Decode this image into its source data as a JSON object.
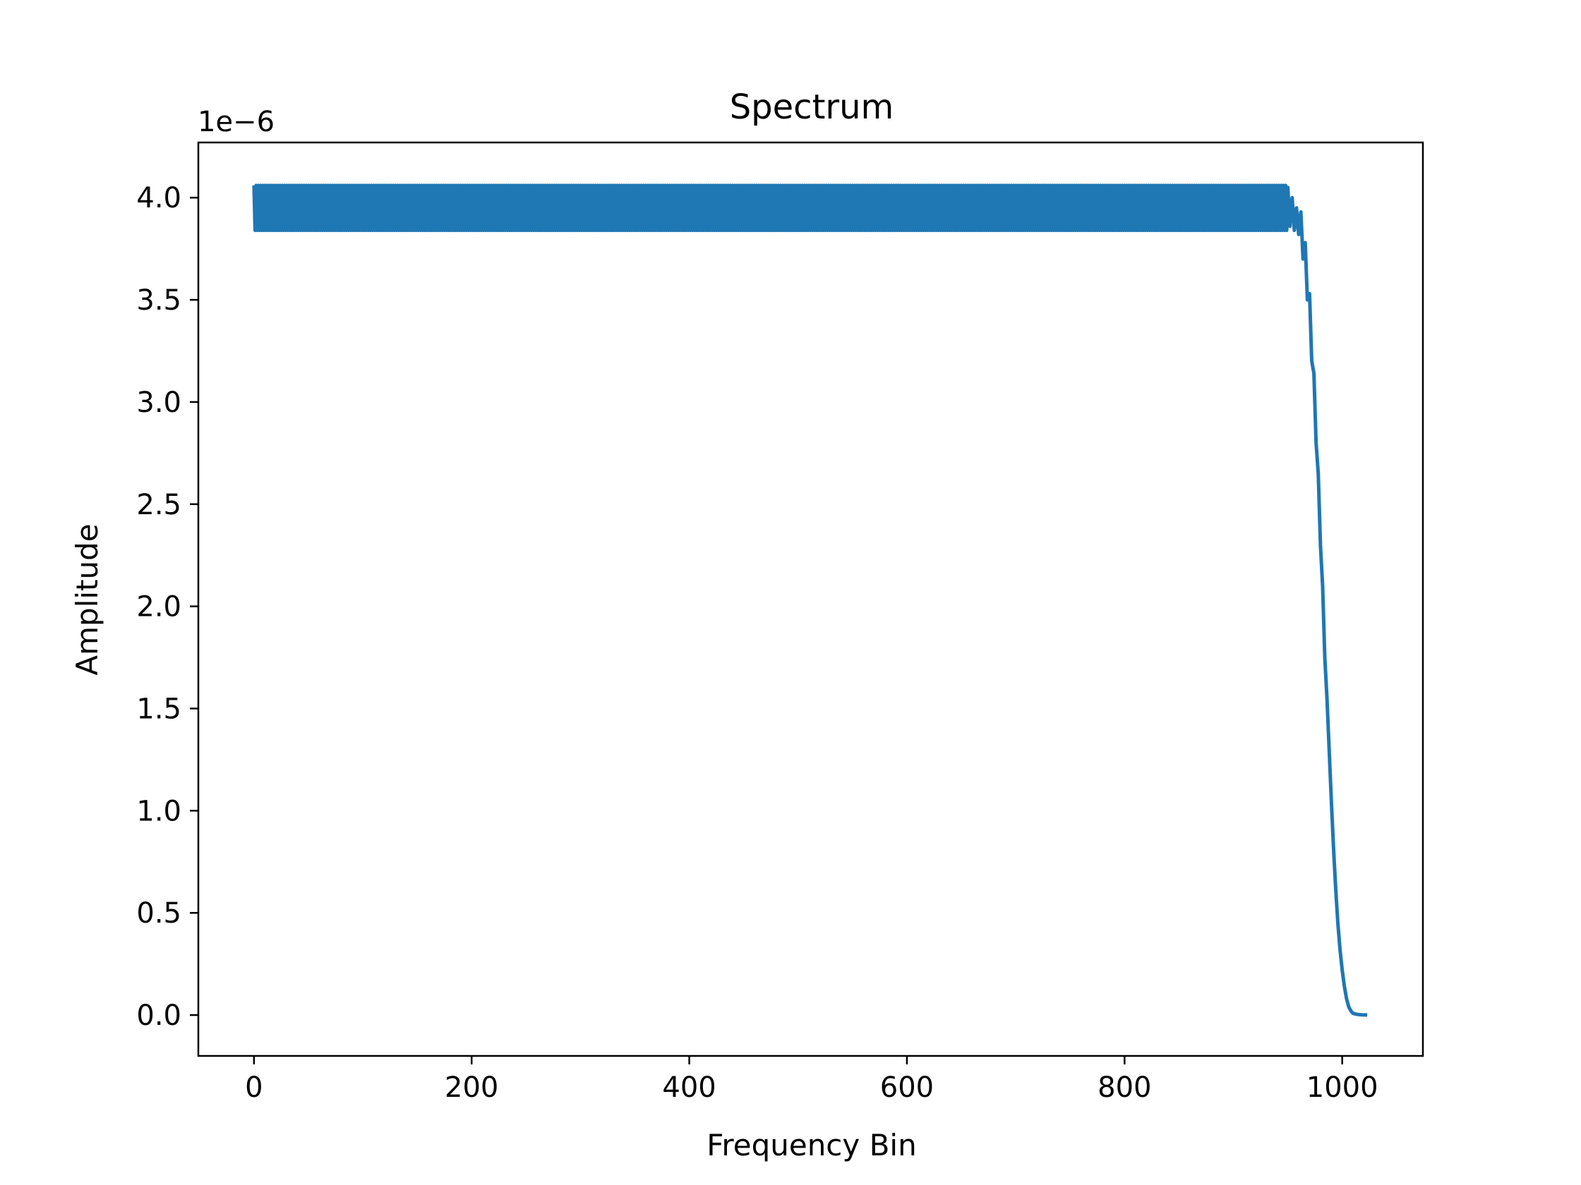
{
  "chart_data": {
    "type": "line",
    "title": "Spectrum",
    "xlabel": "Frequency Bin",
    "ylabel": "Amplitude",
    "y_offset_label": "1e−6",
    "y_scale": 1e-06,
    "xlim": [
      -51.15,
      1074.15
    ],
    "ylim": [
      -0.2,
      4.27
    ],
    "x_ticks": [
      0,
      200,
      400,
      600,
      800,
      1000
    ],
    "x_tick_labels": [
      "0",
      "200",
      "400",
      "600",
      "800",
      "1000"
    ],
    "y_ticks": [
      0.0,
      0.5,
      1.0,
      1.5,
      2.0,
      2.5,
      3.0,
      3.5,
      4.0
    ],
    "y_tick_labels": [
      "0.0",
      "0.5",
      "1.0",
      "1.5",
      "2.0",
      "2.5",
      "3.0",
      "3.5",
      "4.0"
    ],
    "grid": false,
    "color": "#1f77b4",
    "series": [
      {
        "description": "Dense alternating ripple band from bin 0 to ~950, then roll-off to zero by ~1023",
        "ripple_band": {
          "x_start": 0,
          "x_end": 950,
          "y_high": 4.06,
          "y_low": 3.84,
          "period_bins": 2
        },
        "rolloff_points": [
          [
            950,
            4.05
          ],
          [
            952,
            3.86
          ],
          [
            954,
            4.0
          ],
          [
            956,
            3.84
          ],
          [
            958,
            3.95
          ],
          [
            960,
            3.82
          ],
          [
            962,
            3.93
          ],
          [
            964,
            3.7
          ],
          [
            966,
            3.78
          ],
          [
            968,
            3.5
          ],
          [
            970,
            3.53
          ],
          [
            972,
            3.2
          ],
          [
            974,
            3.14
          ],
          [
            976,
            2.8
          ],
          [
            978,
            2.65
          ],
          [
            980,
            2.3
          ],
          [
            982,
            2.1
          ],
          [
            984,
            1.75
          ],
          [
            986,
            1.55
          ],
          [
            988,
            1.3
          ],
          [
            990,
            1.05
          ],
          [
            992,
            0.82
          ],
          [
            994,
            0.62
          ],
          [
            996,
            0.45
          ],
          [
            998,
            0.32
          ],
          [
            1000,
            0.22
          ],
          [
            1002,
            0.14
          ],
          [
            1004,
            0.08
          ],
          [
            1006,
            0.04
          ],
          [
            1008,
            0.02
          ],
          [
            1010,
            0.008
          ],
          [
            1014,
            0.003
          ],
          [
            1018,
            0.001
          ],
          [
            1023,
            0.0
          ]
        ]
      }
    ]
  }
}
